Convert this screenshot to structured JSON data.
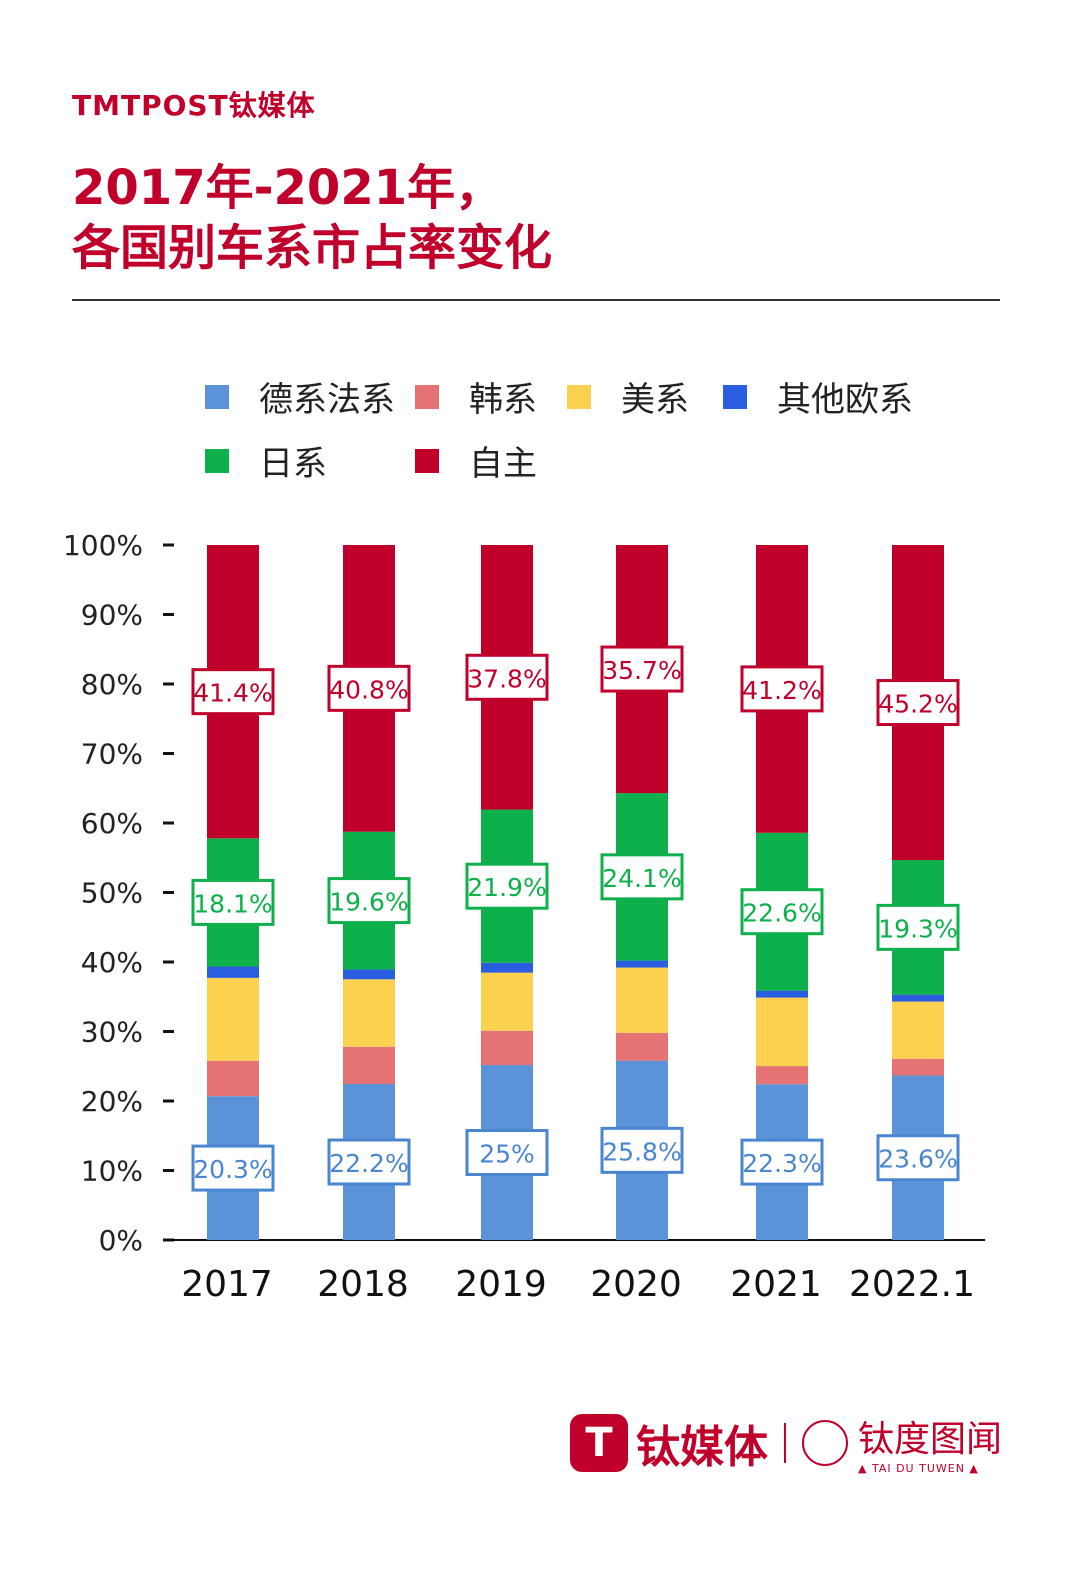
{
  "brand": "TMTPOST钛媒体",
  "title_line1": "2017年-2021年，",
  "title_line2": "各国别车系市占率变化",
  "footer": {
    "name": "钛媒体",
    "partner": "钛度图闻",
    "partner_en": "▲ TAI DU TUWEN ▲"
  },
  "chart_data": {
    "type": "bar",
    "stacked": true,
    "categories": [
      "2017",
      "2018",
      "2019",
      "2020",
      "2021",
      "2022.1"
    ],
    "ylim": [
      0,
      100
    ],
    "yticks": [
      "0%",
      "10%",
      "20%",
      "30%",
      "40%",
      "50%",
      "60%",
      "70%",
      "80%",
      "90%",
      "100%"
    ],
    "legend_placement": "top",
    "grid": false,
    "series": [
      {
        "name": "德系法系",
        "color": "#5b93d8",
        "labeled": true,
        "label_color": "#4a86d0",
        "values": [
          20.3,
          22.2,
          25,
          25.8,
          22.3,
          23.6
        ]
      },
      {
        "name": "韩系",
        "color": "#e57373",
        "labeled": false,
        "values": [
          5.0,
          5.3,
          4.9,
          4.0,
          2.6,
          2.4
        ]
      },
      {
        "name": "美系",
        "color": "#fdd150",
        "labeled": false,
        "values": [
          11.7,
          9.6,
          8.3,
          9.4,
          9.8,
          8.2
        ]
      },
      {
        "name": "其他欧系",
        "color": "#2a5ee0",
        "labeled": false,
        "values": [
          1.6,
          1.4,
          1.4,
          1.0,
          1.0,
          1.0
        ]
      },
      {
        "name": "日系",
        "color": "#0db04b",
        "labeled": true,
        "label_color": "#0db04b",
        "values": [
          18.1,
          19.6,
          21.9,
          24.1,
          22.6,
          19.3
        ]
      },
      {
        "name": "自主",
        "color": "#c0002b",
        "labeled": true,
        "label_color": "#c0002b",
        "values": [
          41.4,
          40.8,
          37.8,
          35.7,
          41.2,
          45.2
        ]
      }
    ],
    "data_labels": [
      [
        "20.3%",
        "22.2%",
        "25%",
        "25.8%",
        "22.3%",
        "23.6%"
      ],
      null,
      null,
      null,
      [
        "18.1%",
        "19.6%",
        "21.9%",
        "24.1%",
        "22.6%",
        "19.3%"
      ],
      [
        "41.4%",
        "40.8%",
        "37.8%",
        "35.7%",
        "41.2%",
        "45.2%"
      ]
    ]
  }
}
